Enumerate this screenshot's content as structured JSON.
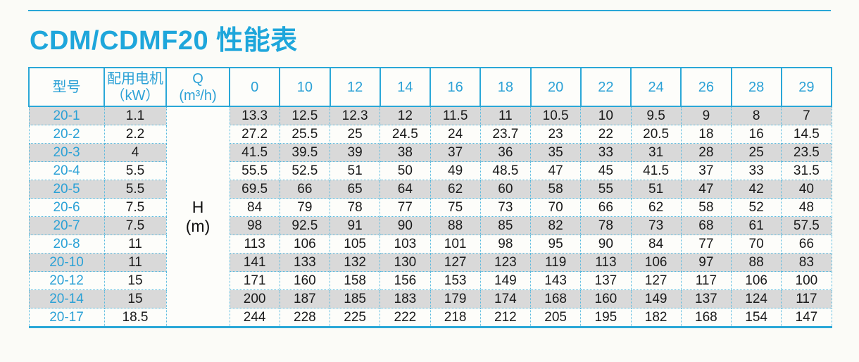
{
  "page": {
    "title": "CDM/CDMF20 性能表"
  },
  "colors": {
    "accent_blue": "#2aa7d7",
    "header_text_blue": "#2ba1d6",
    "row_stripe_gray": "#d9d9d9",
    "value_text": "#1a1a1a"
  },
  "table": {
    "headers": {
      "model": "型号",
      "motor_line1": "配用电机",
      "motor_line2": "（kW）",
      "q_line1": "Q",
      "q_line2": "(m³/h)"
    },
    "flow_columns": [
      "0",
      "10",
      "12",
      "14",
      "16",
      "18",
      "20",
      "22",
      "24",
      "26",
      "28",
      "29"
    ],
    "head_unit": {
      "line1": "H",
      "line2": "(m)"
    },
    "rows": [
      {
        "model": "20-1",
        "kw": "1.1",
        "values": [
          "13.3",
          "12.5",
          "12.3",
          "12",
          "11.5",
          "11",
          "10.5",
          "10",
          "9.5",
          "9",
          "8",
          "7"
        ]
      },
      {
        "model": "20-2",
        "kw": "2.2",
        "values": [
          "27.2",
          "25.5",
          "25",
          "24.5",
          "24",
          "23.7",
          "23",
          "22",
          "20.5",
          "18",
          "16",
          "14.5"
        ]
      },
      {
        "model": "20-3",
        "kw": "4",
        "values": [
          "41.5",
          "39.5",
          "39",
          "38",
          "37",
          "36",
          "35",
          "33",
          "31",
          "28",
          "25",
          "23.5"
        ]
      },
      {
        "model": "20-4",
        "kw": "5.5",
        "values": [
          "55.5",
          "52.5",
          "51",
          "50",
          "49",
          "48.5",
          "47",
          "45",
          "41.5",
          "37",
          "33",
          "31.5"
        ]
      },
      {
        "model": "20-5",
        "kw": "5.5",
        "values": [
          "69.5",
          "66",
          "65",
          "64",
          "62",
          "60",
          "58",
          "55",
          "51",
          "47",
          "42",
          "40"
        ]
      },
      {
        "model": "20-6",
        "kw": "7.5",
        "values": [
          "84",
          "79",
          "78",
          "77",
          "75",
          "73",
          "70",
          "66",
          "62",
          "58",
          "52",
          "48"
        ]
      },
      {
        "model": "20-7",
        "kw": "7.5",
        "values": [
          "98",
          "92.5",
          "91",
          "90",
          "88",
          "85",
          "82",
          "78",
          "73",
          "68",
          "61",
          "57.5"
        ]
      },
      {
        "model": "20-8",
        "kw": "11",
        "values": [
          "113",
          "106",
          "105",
          "103",
          "101",
          "98",
          "95",
          "90",
          "84",
          "77",
          "70",
          "66"
        ]
      },
      {
        "model": "20-10",
        "kw": "11",
        "values": [
          "141",
          "133",
          "132",
          "130",
          "127",
          "123",
          "119",
          "113",
          "106",
          "97",
          "88",
          "83"
        ]
      },
      {
        "model": "20-12",
        "kw": "15",
        "values": [
          "171",
          "160",
          "158",
          "156",
          "153",
          "149",
          "143",
          "137",
          "127",
          "117",
          "106",
          "100"
        ]
      },
      {
        "model": "20-14",
        "kw": "15",
        "values": [
          "200",
          "187",
          "185",
          "183",
          "179",
          "174",
          "168",
          "160",
          "149",
          "137",
          "124",
          "117"
        ]
      },
      {
        "model": "20-17",
        "kw": "18.5",
        "values": [
          "244",
          "228",
          "225",
          "222",
          "218",
          "212",
          "205",
          "195",
          "182",
          "168",
          "154",
          "147"
        ]
      }
    ]
  }
}
